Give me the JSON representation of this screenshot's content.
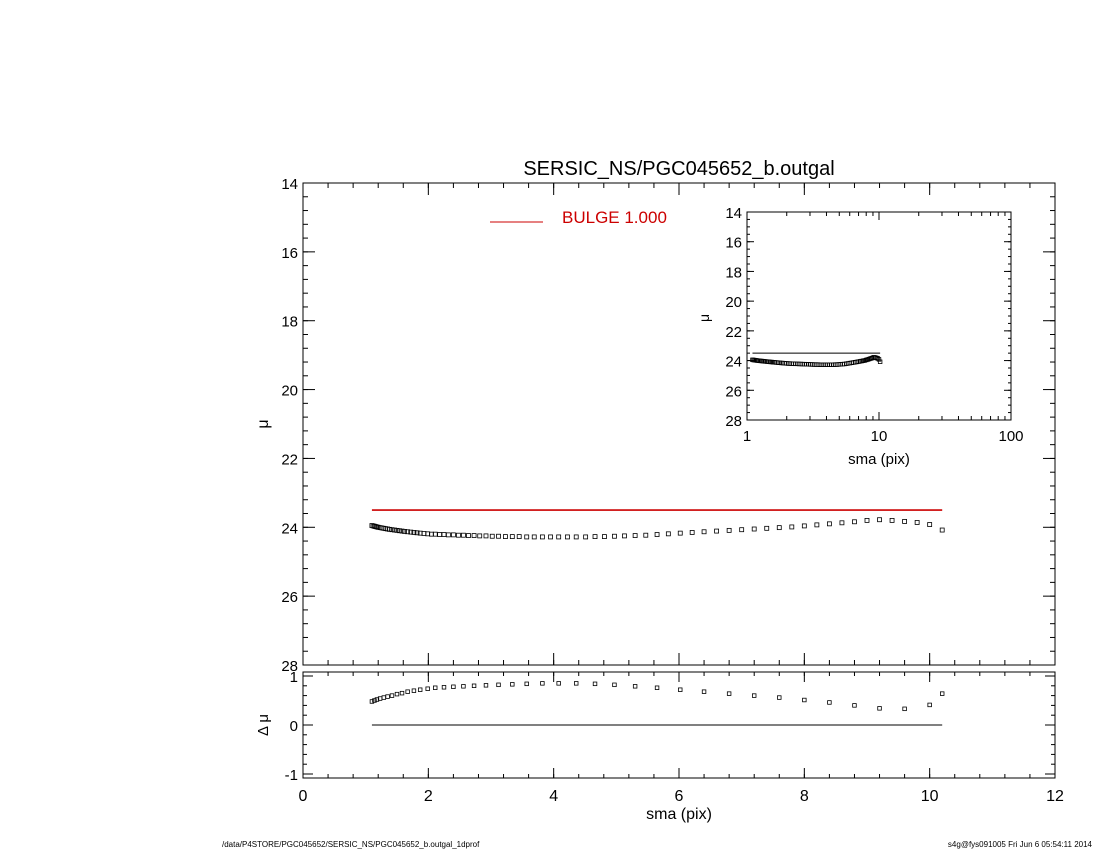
{
  "chart_data": [
    {
      "panel": "main",
      "type": "scatter",
      "title": "SERSIC_NS/PGC045652_b.outgal",
      "xlabel": "",
      "ylabel": "μ",
      "xlim": [
        0,
        12
      ],
      "ylim": [
        28,
        14
      ],
      "y_inverted": true,
      "x_ticks": [
        0,
        2,
        4,
        6,
        8,
        10,
        12
      ],
      "y_ticks": [
        14,
        16,
        18,
        20,
        22,
        24,
        26,
        28
      ],
      "legend": {
        "placement": "top-center",
        "entries": [
          {
            "label": "BULGE  1.000",
            "color": "#cc0000"
          }
        ]
      },
      "model": {
        "name": "BULGE",
        "color": "#cc0000",
        "x": [
          1.1,
          10.2
        ],
        "y": [
          23.5,
          23.5
        ]
      },
      "series": [
        {
          "name": "data",
          "marker": "open-square",
          "color": "#000000",
          "x": [
            1.1,
            1.12,
            1.14,
            1.16,
            1.18,
            1.2,
            1.23,
            1.26,
            1.29,
            1.32,
            1.35,
            1.38,
            1.42,
            1.46,
            1.5,
            1.54,
            1.58,
            1.62,
            1.67,
            1.72,
            1.77,
            1.82,
            1.87,
            1.93,
            1.99,
            2.05,
            2.11,
            2.18,
            2.25,
            2.32,
            2.4,
            2.48,
            2.56,
            2.64,
            2.73,
            2.82,
            2.92,
            3.02,
            3.12,
            3.23,
            3.34,
            3.45,
            3.57,
            3.69,
            3.82,
            3.95,
            4.08,
            4.22,
            4.36,
            4.51,
            4.66,
            4.81,
            4.97,
            5.13,
            5.3,
            5.47,
            5.65,
            5.83,
            6.02,
            6.21,
            6.4,
            6.6,
            6.8,
            7.0,
            7.2,
            7.4,
            7.6,
            7.8,
            8.0,
            8.2,
            8.4,
            8.6,
            8.8,
            9.0,
            9.2,
            9.4,
            9.6,
            9.8,
            10.0,
            10.2
          ],
          "y": [
            23.95,
            23.96,
            23.97,
            23.98,
            23.99,
            24.0,
            24.01,
            24.02,
            24.03,
            24.04,
            24.05,
            24.06,
            24.07,
            24.08,
            24.09,
            24.1,
            24.11,
            24.12,
            24.13,
            24.14,
            24.15,
            24.16,
            24.17,
            24.18,
            24.19,
            24.2,
            24.2,
            24.21,
            24.21,
            24.22,
            24.22,
            24.23,
            24.23,
            24.24,
            24.24,
            24.25,
            24.25,
            24.26,
            24.26,
            24.27,
            24.27,
            24.27,
            24.28,
            24.28,
            24.28,
            24.28,
            24.28,
            24.28,
            24.28,
            24.28,
            24.27,
            24.27,
            24.26,
            24.25,
            24.24,
            24.23,
            24.21,
            24.19,
            24.17,
            24.15,
            24.13,
            24.11,
            24.09,
            24.07,
            24.05,
            24.03,
            24.01,
            23.99,
            23.96,
            23.93,
            23.9,
            23.87,
            23.84,
            23.8,
            23.78,
            23.8,
            23.83,
            23.86,
            23.92,
            24.08
          ]
        }
      ]
    },
    {
      "panel": "inset",
      "type": "scatter",
      "xlabel": "sma (pix)",
      "ylabel": "μ",
      "xscale": "log",
      "xlim": [
        1,
        100
      ],
      "ylim": [
        28,
        14
      ],
      "y_inverted": true,
      "x_ticks": [
        1,
        10,
        100
      ],
      "y_ticks": [
        14,
        16,
        18,
        20,
        22,
        24,
        26,
        28
      ],
      "model": {
        "color": "#000000",
        "x": [
          1.1,
          10.2
        ],
        "y": [
          23.5,
          23.5
        ]
      }
    },
    {
      "panel": "residual",
      "type": "scatter",
      "xlabel": "sma (pix)",
      "ylabel": "Δ μ",
      "xlim": [
        0,
        12
      ],
      "ylim": [
        -1,
        1
      ],
      "x_ticks": [
        0,
        2,
        4,
        6,
        8,
        10,
        12
      ],
      "y_ticks": [
        -1,
        0,
        1
      ],
      "zero_line": {
        "x": [
          1.1,
          10.2
        ],
        "y": [
          0,
          0
        ]
      },
      "series": [
        {
          "name": "residual",
          "marker": "open-square",
          "color": "#000000",
          "x": [
            1.1,
            1.14,
            1.18,
            1.23,
            1.29,
            1.35,
            1.42,
            1.5,
            1.58,
            1.67,
            1.77,
            1.87,
            1.99,
            2.11,
            2.25,
            2.4,
            2.56,
            2.73,
            2.92,
            3.12,
            3.34,
            3.57,
            3.82,
            4.08,
            4.36,
            4.66,
            4.97,
            5.3,
            5.65,
            6.02,
            6.4,
            6.8,
            7.2,
            7.6,
            8.0,
            8.4,
            8.8,
            9.2,
            9.6,
            10.0,
            10.2
          ],
          "y": [
            0.48,
            0.5,
            0.52,
            0.54,
            0.56,
            0.58,
            0.6,
            0.63,
            0.65,
            0.68,
            0.7,
            0.72,
            0.74,
            0.76,
            0.77,
            0.78,
            0.79,
            0.8,
            0.81,
            0.82,
            0.83,
            0.84,
            0.85,
            0.85,
            0.85,
            0.84,
            0.82,
            0.79,
            0.76,
            0.72,
            0.68,
            0.64,
            0.6,
            0.56,
            0.51,
            0.46,
            0.4,
            0.34,
            0.33,
            0.41,
            0.64
          ]
        }
      ]
    }
  ],
  "footer": {
    "path": "/data/P4STORE/PGC045652/SERSIC_NS/PGC045652_b.outgal_1dprof",
    "user_stamp": "s4g@fys091005  Fri Jun  6 05:54:11 2014"
  }
}
